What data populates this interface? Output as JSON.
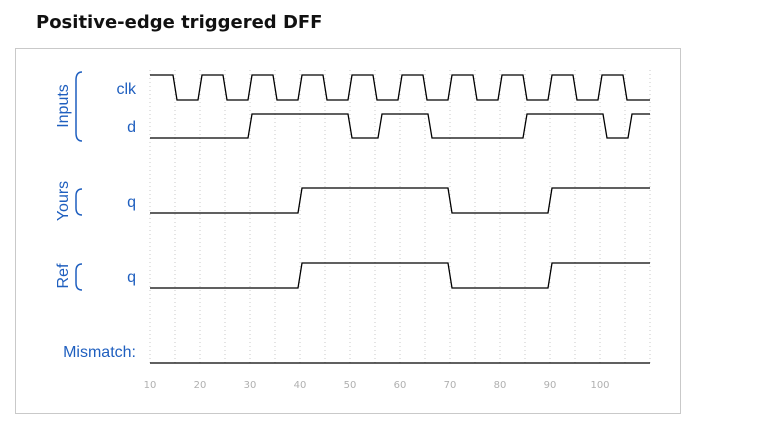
{
  "page": {
    "title": "Positive-edge triggered DFF"
  },
  "groups": [
    {
      "label": "Inputs"
    },
    {
      "label": "Yours"
    },
    {
      "label": "Ref"
    }
  ],
  "signals": [
    {
      "id": "clk",
      "label": "clk",
      "group": "Inputs",
      "edges": [
        15,
        20,
        25,
        30,
        35,
        40,
        45,
        50,
        55,
        60,
        65,
        70,
        75,
        80,
        85,
        90,
        95,
        100,
        105
      ],
      "initial": 1
    },
    {
      "id": "d",
      "label": "d",
      "group": "Inputs",
      "edges": [
        30,
        50,
        56,
        66,
        85,
        101,
        106
      ],
      "initial": 0
    },
    {
      "id": "q_yours",
      "label": "q",
      "group": "Yours",
      "edges": [
        40,
        70,
        90
      ],
      "initial": 0
    },
    {
      "id": "q_ref",
      "label": "q",
      "group": "Ref",
      "edges": [
        40,
        70,
        90
      ],
      "initial": 0
    }
  ],
  "mismatch": {
    "label": "Mismatch:"
  },
  "time_axis": {
    "start": 10,
    "end": 110,
    "ticks": [
      "10",
      "20",
      "30",
      "40",
      "50",
      "60",
      "70",
      "80",
      "90",
      "100"
    ]
  },
  "colors": {
    "label": "#1f5fbf",
    "wave": "#000000",
    "grid": "#c8c8c8",
    "tick_label": "#b0b0b0"
  }
}
